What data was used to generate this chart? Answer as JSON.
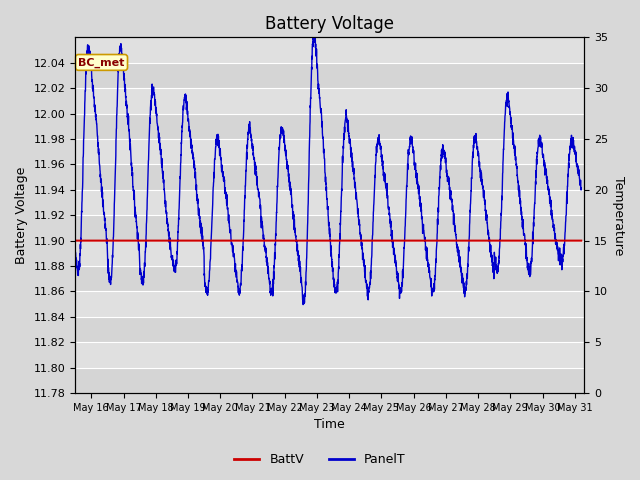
{
  "title": "Battery Voltage",
  "xlabel": "Time",
  "ylabel_left": "Battery Voltage",
  "ylabel_right": "Temperature",
  "ylim_left": [
    11.78,
    12.06
  ],
  "ylim_right": [
    0,
    35
  ],
  "yticks_left": [
    11.78,
    11.8,
    11.82,
    11.84,
    11.86,
    11.88,
    11.9,
    11.92,
    11.94,
    11.96,
    11.98,
    12.0,
    12.02,
    12.04
  ],
  "yticks_right": [
    0,
    5,
    10,
    15,
    20,
    25,
    30,
    35
  ],
  "battv_value": 11.9,
  "battv_color": "#cc0000",
  "panelt_color": "#0000cc",
  "bg_color": "#d8d8d8",
  "plot_bg_color": "#e0e0e0",
  "annotation_text": "BC_met",
  "annotation_bg": "#ffffcc",
  "annotation_border": "#cc9900",
  "annotation_text_color": "#880000",
  "x_tick_labels": [
    "May 16",
    "May 17",
    "May 18",
    "May 19",
    "May 20",
    "May 21",
    "May 22",
    "May 23",
    "May 24",
    "May 25",
    "May 26",
    "May 27",
    "May 28",
    "May 29",
    "May 30",
    "May 31"
  ],
  "start_day": 15.5,
  "end_day": 31.3,
  "legend_battv_label": "BattV",
  "legend_panelt_label": "PanelT",
  "grid_color": "#ffffff",
  "title_fontsize": 12,
  "label_fontsize": 9,
  "tick_fontsize": 8
}
